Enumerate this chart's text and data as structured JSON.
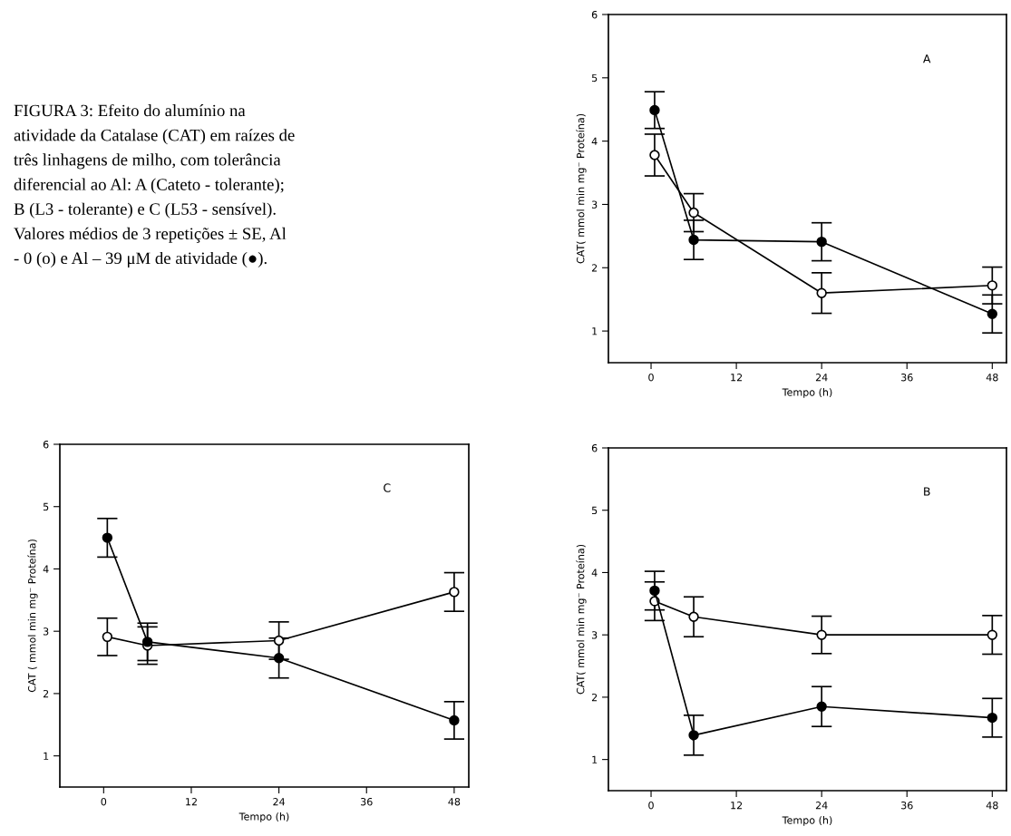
{
  "chart_data": [
    {
      "type": "other",
      "annotations": [
        "FIGURA 3: Efeito do alumínio na",
        "atividade da Catalase (CAT) em raízes de",
        "três linhagens de milho, com tolerância",
        "diferencial ao Al: A (Cateto - tolerante);",
        "B (L3 - tolerante) e C (L53 - sensível).",
        "Valores médios de 3 repetições ± SE, Al",
        "- 0 (o) e Al – 39 μM de atividade (●)."
      ]
    },
    {
      "type": "line",
      "xlabel": "Tempo (h)",
      "ylabel": "CAT( mmol min mg⁻ Proteína)",
      "annotations": [
        "A"
      ],
      "marker": "circle",
      "xlim": [
        -6,
        50
      ],
      "xticks": [
        0,
        12,
        24,
        36,
        48
      ],
      "ylim": [
        0.5,
        6
      ],
      "yticks": [
        1,
        2,
        3,
        4,
        5,
        6
      ],
      "grid": false,
      "legend": false,
      "series": [
        {
          "color": "#ffffff",
          "x": [
            0.5,
            6,
            24,
            48
          ],
          "values": [
            3.78,
            2.87,
            1.6,
            1.72
          ],
          "errors": [
            0.33,
            0.3,
            0.32,
            0.29
          ]
        },
        {
          "color": "#000000",
          "x": [
            0.5,
            6,
            24,
            48
          ],
          "values": [
            4.49,
            2.44,
            2.41,
            1.27
          ],
          "errors": [
            0.29,
            0.31,
            0.3,
            0.3
          ]
        }
      ]
    },
    {
      "type": "line",
      "xlabel": "Tempo (h)",
      "ylabel": "CAT ( mmol min mg⁻ Proteína)",
      "annotations": [
        "C"
      ],
      "marker": "circle",
      "xlim": [
        -6,
        50
      ],
      "xticks": [
        0,
        12,
        24,
        36,
        48
      ],
      "ylim": [
        0.5,
        6
      ],
      "yticks": [
        1,
        2,
        3,
        4,
        5,
        6
      ],
      "grid": false,
      "legend": false,
      "series": [
        {
          "color": "#ffffff",
          "x": [
            0.5,
            6,
            24,
            48
          ],
          "values": [
            2.91,
            2.77,
            2.85,
            3.63
          ],
          "errors": [
            0.3,
            0.3,
            0.3,
            0.31
          ]
        },
        {
          "color": "#000000",
          "x": [
            0.5,
            6,
            24,
            48
          ],
          "values": [
            4.5,
            2.83,
            2.57,
            1.57
          ],
          "errors": [
            0.31,
            0.3,
            0.32,
            0.3
          ]
        }
      ]
    },
    {
      "type": "line",
      "xlabel": "Tempo (h)",
      "ylabel": "CAT( mmol min mg⁻ Proteína)",
      "annotations": [
        "B"
      ],
      "marker": "circle",
      "xlim": [
        -6,
        50
      ],
      "xticks": [
        0,
        12,
        24,
        36,
        48
      ],
      "ylim": [
        0.5,
        6
      ],
      "yticks": [
        1,
        2,
        3,
        4,
        5,
        6
      ],
      "grid": false,
      "legend": false,
      "series": [
        {
          "color": "#ffffff",
          "x": [
            0.5,
            6,
            24,
            48
          ],
          "values": [
            3.54,
            3.29,
            3.0,
            3.0
          ],
          "errors": [
            0.31,
            0.32,
            0.3,
            0.31
          ]
        },
        {
          "color": "#000000",
          "x": [
            0.5,
            6,
            24,
            48
          ],
          "values": [
            3.71,
            1.39,
            1.85,
            1.67
          ],
          "errors": [
            0.31,
            0.32,
            0.32,
            0.31
          ]
        }
      ]
    }
  ]
}
